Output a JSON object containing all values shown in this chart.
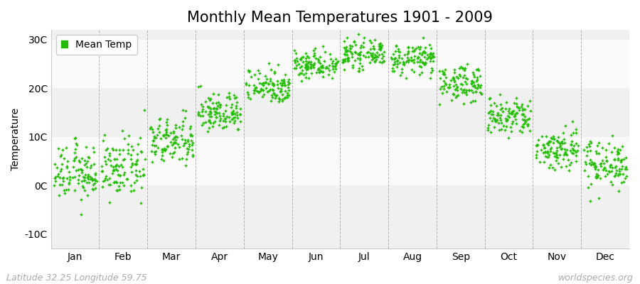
{
  "title": "Monthly Mean Temperatures 1901 - 2009",
  "ylabel": "Temperature",
  "xlabel_labels": [
    "Jan",
    "Feb",
    "Mar",
    "Apr",
    "May",
    "Jun",
    "Jul",
    "Aug",
    "Sep",
    "Oct",
    "Nov",
    "Dec"
  ],
  "ytick_labels": [
    "-10C",
    "0C",
    "10C",
    "20C",
    "30C"
  ],
  "ytick_values": [
    -10,
    0,
    10,
    20,
    30
  ],
  "ylim": [
    -13,
    32
  ],
  "xlim": [
    0,
    12
  ],
  "legend_label": "Mean Temp",
  "dot_color": "#22bb00",
  "bg_band_light": "#f0f0f0",
  "bg_band_white": "#fafafa",
  "fig_background": "#ffffff",
  "dashed_color": "#999999",
  "watermark_left": "Latitude 32.25 Longitude 59.75",
  "watermark_right": "worldspecies.org",
  "n_years": 109,
  "monthly_means": [
    2.5,
    3.5,
    9.0,
    15.0,
    20.5,
    25.0,
    27.0,
    26.0,
    21.0,
    14.0,
    7.5,
    4.5
  ],
  "monthly_stds": [
    2.8,
    3.0,
    2.5,
    2.0,
    1.8,
    1.5,
    1.3,
    1.5,
    1.8,
    2.0,
    2.2,
    2.5
  ],
  "title_fontsize": 15,
  "axis_fontsize": 10,
  "tick_fontsize": 10,
  "watermark_fontsize": 9
}
